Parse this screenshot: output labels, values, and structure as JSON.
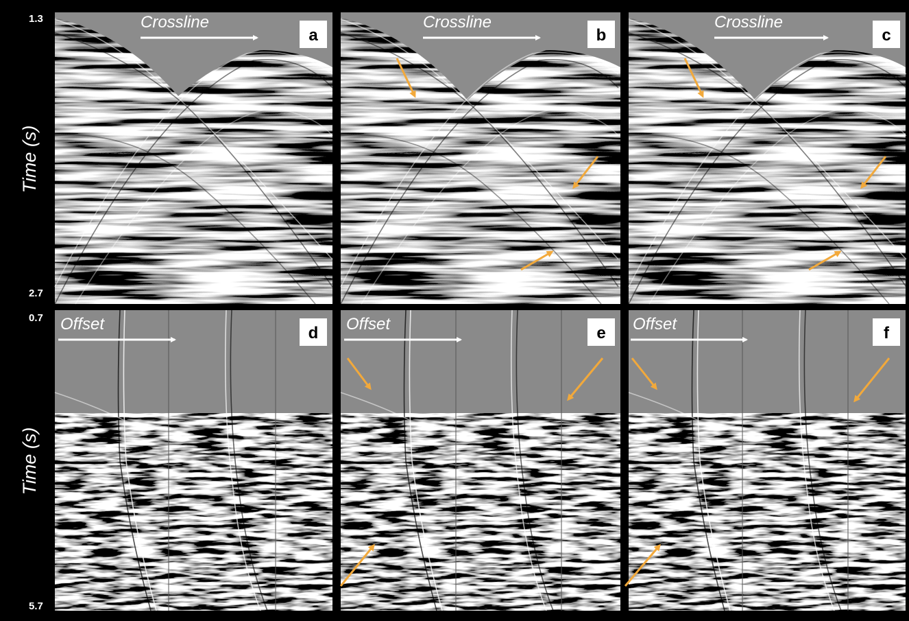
{
  "axis_top": {
    "label": "Time (s)",
    "start": "1.3",
    "end": "2.7"
  },
  "axis_bottom": {
    "label": "Time (s)",
    "start": "0.7",
    "end": "5.7"
  },
  "panels": [
    {
      "letter": "a",
      "direction": "Crossline"
    },
    {
      "letter": "b",
      "direction": "Crossline"
    },
    {
      "letter": "c",
      "direction": "Crossline"
    },
    {
      "letter": "d",
      "direction": "Offset"
    },
    {
      "letter": "e",
      "direction": "Offset"
    },
    {
      "letter": "f",
      "direction": "Offset"
    }
  ]
}
